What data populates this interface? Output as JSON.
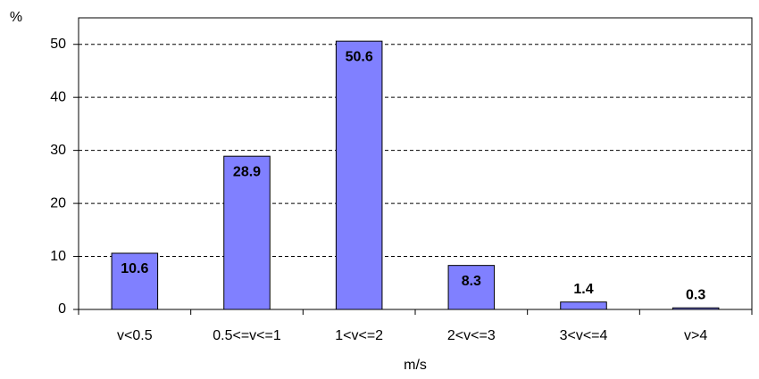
{
  "chart_data": {
    "type": "bar",
    "y_label": "%",
    "x_label": "m/s",
    "categories": [
      "v<0.5",
      "0.5<=v<=1",
      "1<v<=2",
      "2<v<=3",
      "3<v<=4",
      "v>4"
    ],
    "values": [
      10.6,
      28.9,
      50.6,
      8.3,
      1.4,
      0.3
    ],
    "color": "#8080ff",
    "ylim": [
      0,
      55
    ],
    "yticks": [
      0,
      10,
      20,
      30,
      40,
      50
    ],
    "grid": true
  }
}
